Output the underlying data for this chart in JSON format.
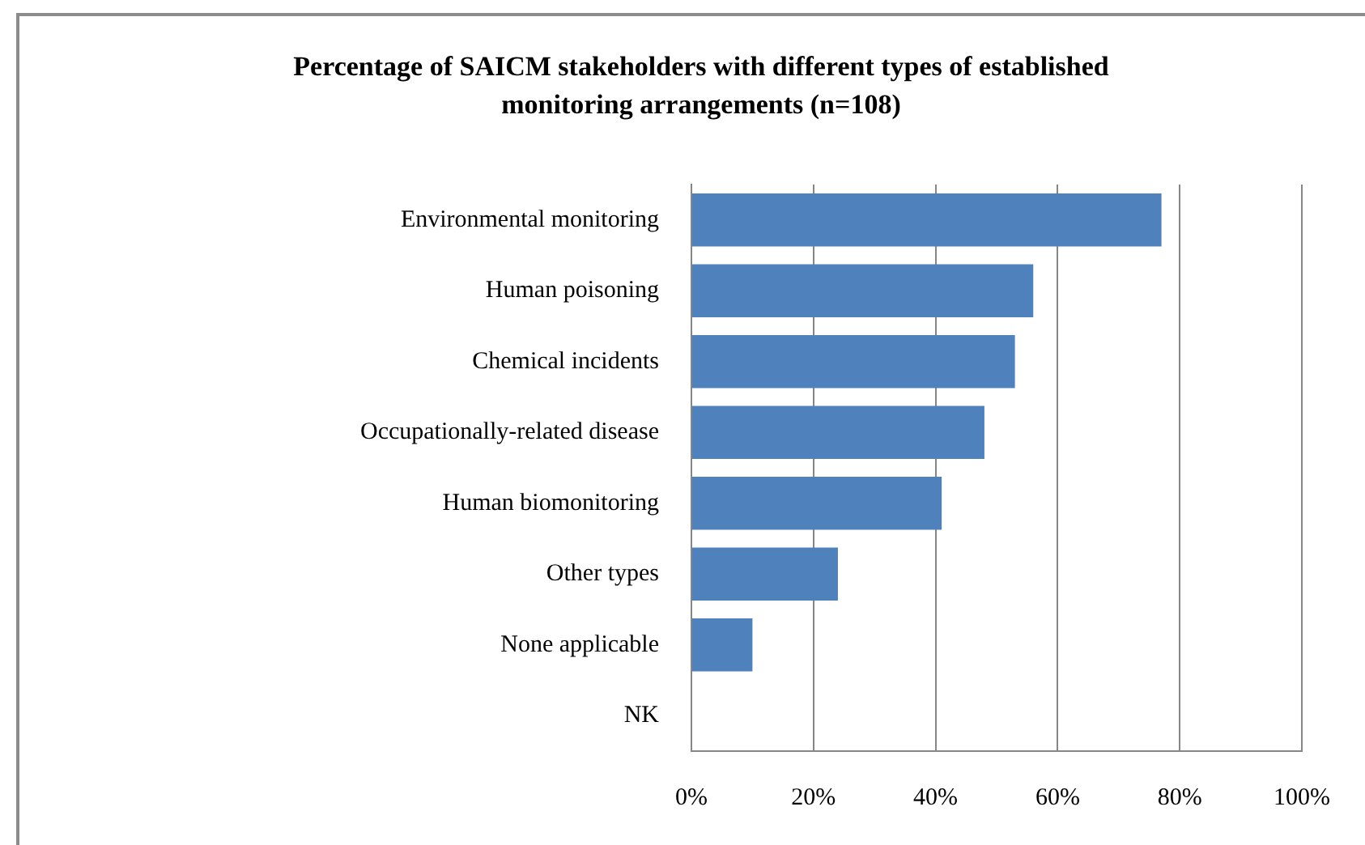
{
  "chart_data": {
    "type": "bar",
    "orientation": "horizontal",
    "title": "Percentage of SAICM stakeholders with different types of established monitoring arrangements (n=108)",
    "categories": [
      "Environmental monitoring",
      "Human poisoning",
      "Chemical incidents",
      "Occupationally-related disease",
      "Human biomonitoring",
      "Other types",
      "None applicable",
      "NK"
    ],
    "values": [
      77,
      56,
      53,
      48,
      41,
      24,
      10,
      0
    ],
    "color": "#4f81bd",
    "xlim": [
      0,
      100
    ],
    "xticks": [
      {
        "value": 0,
        "label": "0%"
      },
      {
        "value": 20,
        "label": "20%"
      },
      {
        "value": 40,
        "label": "40%"
      },
      {
        "value": 60,
        "label": "60%"
      },
      {
        "value": 80,
        "label": "80%"
      },
      {
        "value": 100,
        "label": "100%"
      }
    ],
    "grid": "x"
  }
}
